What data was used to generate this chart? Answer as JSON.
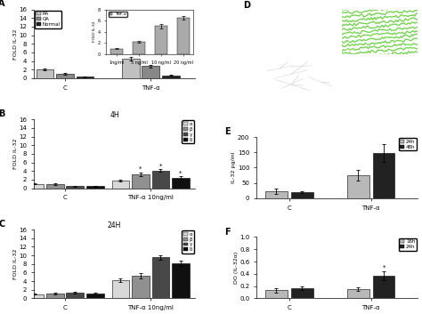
{
  "panel_A": {
    "ylabel": "FOLD IL-32",
    "groups": [
      "C",
      "TNF-α"
    ],
    "legend": [
      "RA",
      "OA",
      "Normal"
    ],
    "bar_colors": [
      "#c0c0c0",
      "#888888",
      "#222222"
    ],
    "values": [
      [
        2.1,
        1.05,
        0.35
      ],
      [
        4.5,
        2.8,
        0.65
      ]
    ],
    "errors": [
      [
        0.25,
        0.15,
        0.08
      ],
      [
        0.35,
        0.35,
        0.12
      ]
    ],
    "ylim": [
      0,
      16
    ],
    "yticks": [
      0,
      2,
      4,
      6,
      8,
      10,
      12,
      14,
      16
    ],
    "inset": {
      "legend_label": "TNF-α",
      "categories": [
        "1ng/ml",
        "5 ng/ml",
        "10 ng/ml",
        "20 ng/ml"
      ],
      "values": [
        1.0,
        2.2,
        5.0,
        6.5
      ],
      "errors": [
        0.08,
        0.15,
        0.35,
        0.25
      ],
      "color": "#aaaaaa",
      "ylim": [
        0,
        8
      ],
      "yticks": [
        0,
        2,
        4,
        6,
        8
      ],
      "ylabel": "FOLD IL-32"
    }
  },
  "panel_B": {
    "title": "4H",
    "ylabel": "FOLD IL-32",
    "groups": [
      "C",
      "TNF-α 10ng/ml"
    ],
    "legend": [
      "α",
      "β",
      "γ",
      "δ"
    ],
    "bar_colors": [
      "#d8d8d8",
      "#909090",
      "#484848",
      "#101010"
    ],
    "values": [
      [
        1.0,
        1.0,
        0.5,
        0.45
      ],
      [
        1.8,
        3.3,
        4.1,
        2.5
      ]
    ],
    "errors": [
      [
        0.12,
        0.15,
        0.08,
        0.08
      ],
      [
        0.25,
        0.38,
        0.32,
        0.28
      ]
    ],
    "stars": [
      false,
      true,
      true,
      true
    ],
    "ylim": [
      0,
      16
    ],
    "yticks": [
      0,
      2,
      4,
      6,
      8,
      10,
      12,
      14,
      16
    ]
  },
  "panel_C": {
    "title": "24H",
    "ylabel": "FOLD IL-32",
    "groups": [
      "C",
      "TNF-α 10ng/ml"
    ],
    "legend": [
      "α",
      "β",
      "γ",
      "δ"
    ],
    "bar_colors": [
      "#d8d8d8",
      "#909090",
      "#484848",
      "#101010"
    ],
    "values": [
      [
        1.0,
        1.1,
        1.3,
        1.1
      ],
      [
        4.2,
        5.2,
        9.5,
        8.2
      ]
    ],
    "errors": [
      [
        0.15,
        0.18,
        0.22,
        0.18
      ],
      [
        0.45,
        0.65,
        0.55,
        0.65
      ]
    ],
    "ylim": [
      0,
      16
    ],
    "yticks": [
      0,
      2,
      4,
      6,
      8,
      10,
      12,
      14,
      16
    ]
  },
  "panel_D": {
    "img_a_color": "#0a1505",
    "img_b_color": "#111111",
    "img_c_color": "#163010",
    "fiber_color": "#50cc20"
  },
  "panel_E": {
    "ylabel": "IL-32 pg/ml",
    "groups": [
      "C",
      "TNF-α"
    ],
    "legend": [
      "24h",
      "48h"
    ],
    "bar_colors": [
      "#b8b8b8",
      "#222222"
    ],
    "values": [
      [
        23,
        20
      ],
      [
        75,
        148
      ]
    ],
    "errors": [
      [
        8,
        4
      ],
      [
        18,
        30
      ]
    ],
    "ylim": [
      0,
      200
    ],
    "yticks": [
      0,
      50,
      100,
      150,
      200
    ]
  },
  "panel_F": {
    "ylabel": "DO (IL-32α)",
    "groups": [
      "C",
      "TNF-α"
    ],
    "legend": [
      "16h",
      "24h"
    ],
    "bar_colors": [
      "#b8b8b8",
      "#222222"
    ],
    "values": [
      [
        0.13,
        0.17
      ],
      [
        0.15,
        0.37
      ]
    ],
    "errors": [
      [
        0.04,
        0.03
      ],
      [
        0.03,
        0.07
      ]
    ],
    "ylim": [
      0,
      1.0
    ],
    "yticks": [
      0,
      0.2,
      0.4,
      0.6,
      0.8,
      1.0
    ]
  }
}
